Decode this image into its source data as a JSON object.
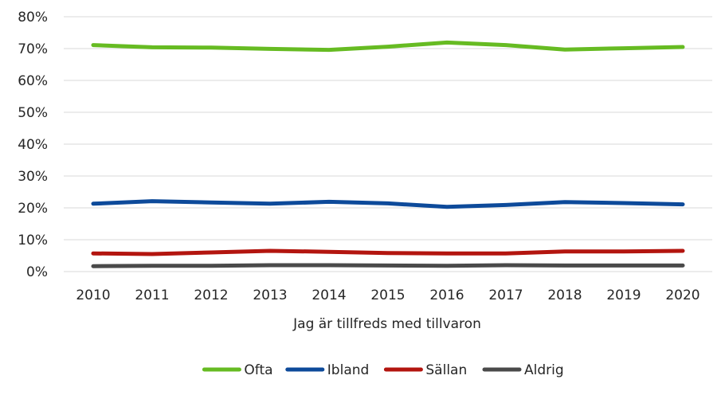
{
  "chart_data": {
    "type": "line",
    "title": "",
    "xlabel": "Jag är tillfreds med tillvaron",
    "ylabel": "",
    "categories": [
      "2010",
      "2011",
      "2012",
      "2013",
      "2014",
      "2015",
      "2016",
      "2017",
      "2018",
      "2019",
      "2020"
    ],
    "ylim": [
      0,
      80
    ],
    "yticks": [
      0,
      10,
      20,
      30,
      40,
      50,
      60,
      70,
      80
    ],
    "ytick_labels": [
      "0%",
      "10%",
      "20%",
      "30%",
      "40%",
      "50%",
      "60%",
      "70%",
      "80%"
    ],
    "grid": true,
    "legend_position": "bottom",
    "series": [
      {
        "name": "Ofta",
        "color": "#66bb22",
        "values": [
          71.1,
          70.4,
          70.3,
          69.9,
          69.6,
          70.6,
          71.9,
          71.1,
          69.7,
          70.1,
          70.5
        ]
      },
      {
        "name": "Ibland",
        "color": "#0d4a9a",
        "values": [
          21.3,
          22.1,
          21.7,
          21.3,
          21.9,
          21.4,
          20.3,
          20.9,
          21.8,
          21.5,
          21.1
        ]
      },
      {
        "name": "Sällan",
        "color": "#b3150f",
        "values": [
          5.7,
          5.5,
          6.0,
          6.5,
          6.2,
          5.8,
          5.7,
          5.7,
          6.3,
          6.3,
          6.5
        ]
      },
      {
        "name": "Aldrig",
        "color": "#4a4a4a",
        "values": [
          1.7,
          1.8,
          1.8,
          2.0,
          2.0,
          1.9,
          1.8,
          2.0,
          1.9,
          1.9,
          1.9
        ]
      }
    ]
  }
}
